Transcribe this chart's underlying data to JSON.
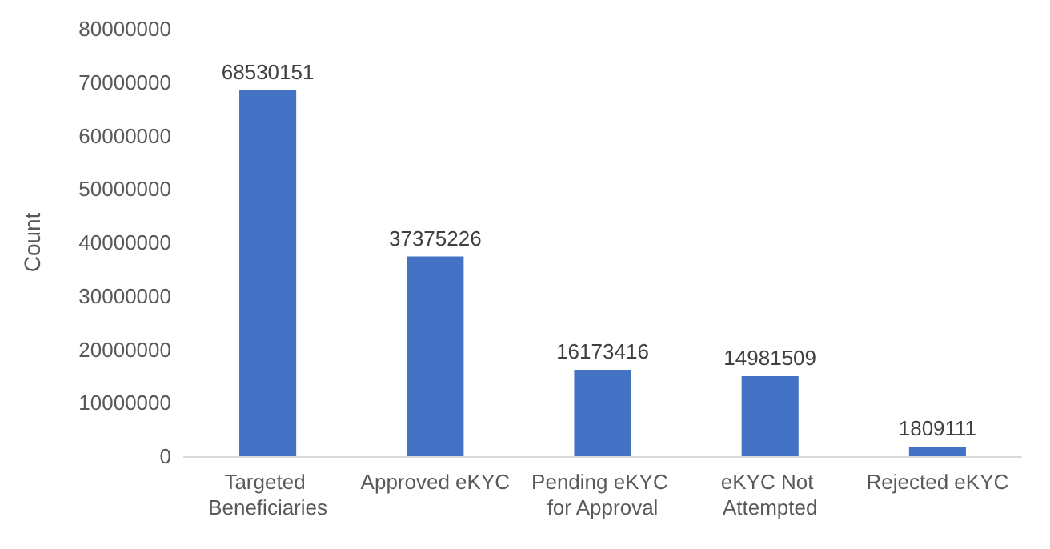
{
  "chart_data": {
    "type": "bar",
    "ylabel": "Count",
    "categories": [
      "Targeted Beneficiaries",
      "Approved eKYC",
      "Pending eKYC for Approval",
      "eKYC Not Attempted",
      "Rejected eKYC"
    ],
    "values": [
      68530151,
      37375226,
      16173416,
      14981509,
      1809111
    ],
    "color": "#4472c4",
    "ylim": [
      0,
      80000000
    ],
    "yticks": [
      0,
      10000000,
      20000000,
      30000000,
      40000000,
      50000000,
      60000000,
      70000000,
      80000000
    ],
    "grid": false,
    "data_labels": true
  }
}
